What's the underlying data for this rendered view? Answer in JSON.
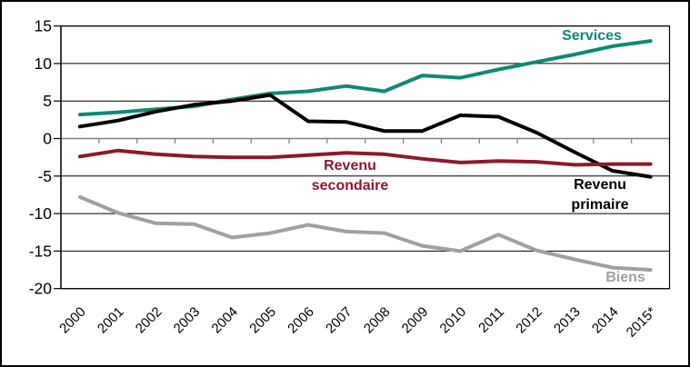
{
  "chart_data": {
    "type": "line",
    "title": "",
    "xlabel": "",
    "ylabel": "",
    "categories": [
      "2000",
      "2001",
      "2002",
      "2003",
      "2004",
      "2005",
      "2006",
      "2007",
      "2008",
      "2009",
      "2010",
      "2011",
      "2012",
      "2013",
      "2014",
      "2015*"
    ],
    "ylim": [
      -20,
      15
    ],
    "yticks": [
      15,
      10,
      5,
      0,
      -5,
      -10,
      -15,
      -20
    ],
    "grid": "horizontal",
    "legend_position": "inline-labels-on-lines",
    "series": [
      {
        "name": "Services",
        "color": "#0D8A73",
        "values": [
          3.2,
          3.5,
          3.9,
          4.3,
          5.2,
          6.0,
          6.3,
          7.0,
          6.3,
          8.4,
          8.1,
          9.2,
          10.2,
          11.2,
          12.3,
          13.0
        ]
      },
      {
        "name": "Revenu primaire",
        "color": "#000000",
        "values": [
          1.6,
          2.4,
          3.6,
          4.5,
          5.0,
          5.8,
          2.3,
          2.2,
          1.0,
          1.0,
          3.1,
          2.9,
          0.8,
          -1.8,
          -4.3,
          -5.1
        ]
      },
      {
        "name": "Revenu secondaire",
        "color": "#8C1A2B",
        "values": [
          -2.4,
          -1.6,
          -2.1,
          -2.4,
          -2.5,
          -2.5,
          -2.2,
          -1.9,
          -2.1,
          -2.7,
          -3.2,
          -3.0,
          -3.1,
          -3.5,
          -3.4,
          -3.4
        ]
      },
      {
        "name": "Biens",
        "color": "#A0A0A0",
        "values": [
          -7.8,
          -9.9,
          -11.3,
          -11.4,
          -13.2,
          -12.6,
          -11.5,
          -12.4,
          -12.6,
          -14.3,
          -15.0,
          -12.8,
          -14.9,
          -16.1,
          -17.2,
          -17.5
        ]
      }
    ]
  },
  "labels": {
    "services": "Services",
    "revenu_secondaire_line1": "Revenu",
    "revenu_secondaire_line2": "secondaire",
    "revenu_primaire_line1": "Revenu",
    "revenu_primaire_line2": "primaire",
    "biens": "Biens"
  },
  "colors": {
    "services": "#0D8A73",
    "revenu_primaire": "#000000",
    "revenu_secondaire": "#8C1A2B",
    "biens": "#A0A0A0",
    "gridline": "#000000",
    "zero_axis": "#808080",
    "axis_text": "#000000",
    "background": "#FFFFFF"
  }
}
